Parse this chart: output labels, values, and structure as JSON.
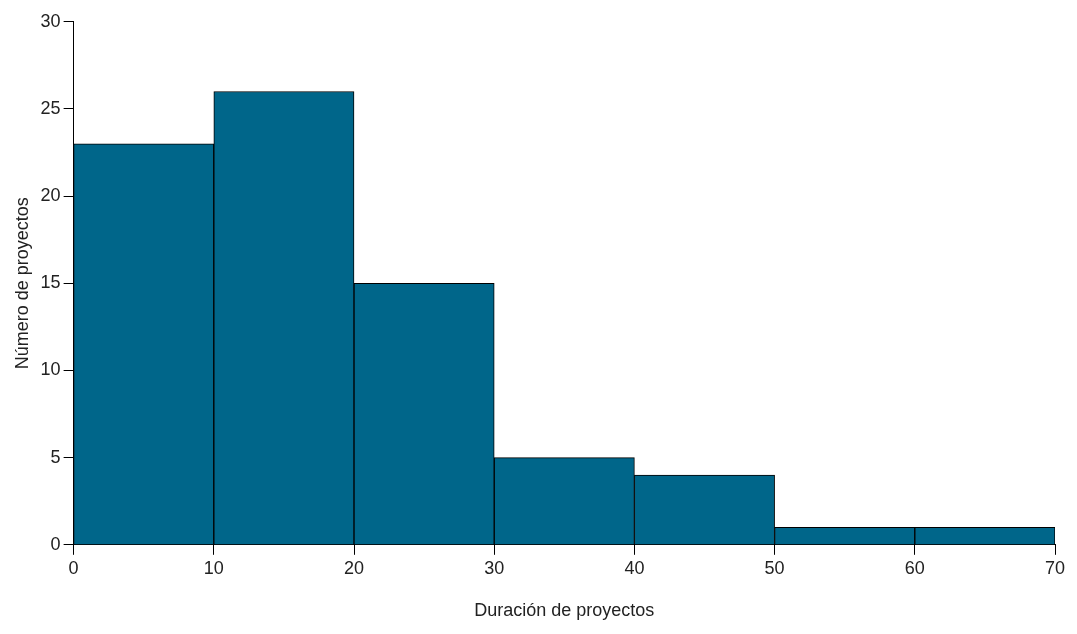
{
  "chart_data": {
    "type": "histogram",
    "xlabel": "Duración de proyectos",
    "ylabel": "Número de proyectos",
    "bins": [
      0,
      10,
      20,
      30,
      40,
      50,
      60,
      70
    ],
    "values": [
      23,
      26,
      15,
      5,
      4,
      1,
      1
    ],
    "color": "#00668a",
    "xlim": [
      0,
      70
    ],
    "xticks": [
      0,
      10,
      20,
      30,
      40,
      50,
      60,
      70
    ],
    "ylim": [
      0,
      30
    ],
    "yticks": [
      0,
      5,
      10,
      15,
      20,
      25,
      30
    ],
    "grid": false,
    "legend": false
  }
}
